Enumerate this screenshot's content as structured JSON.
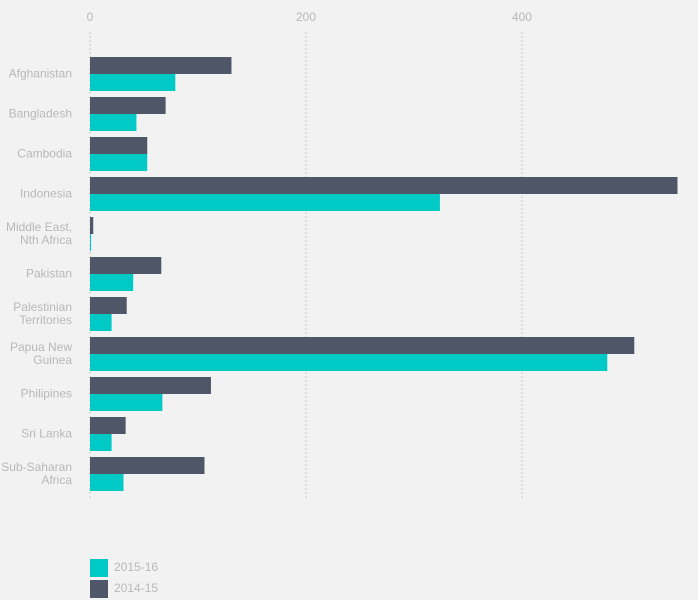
{
  "chart_data": {
    "type": "bar",
    "orientation": "horizontal",
    "categories": [
      "Afghanistan",
      "Bangladesh",
      "Cambodia",
      "Indonesia",
      "Middle East,\nNth Africa",
      "Pakistan",
      "Palestinian\nTerritories",
      "Papua New\nGuinea",
      "Philipines",
      "Sri Lanka",
      "Sub-Saharan\nAfrica"
    ],
    "series": [
      {
        "name": "2015-16",
        "color": "#00c9c6",
        "values": [
          79,
          43,
          53,
          324,
          1,
          40,
          20,
          479,
          67,
          20,
          31
        ]
      },
      {
        "name": "2014-15",
        "color": "#4e5668",
        "values": [
          131,
          70,
          53,
          544,
          3,
          66,
          34,
          504,
          112,
          33,
          106
        ]
      }
    ],
    "xlim": [
      0,
      563
    ],
    "xticks": [
      0,
      200,
      400
    ],
    "grid": true,
    "legend": "bottom-left"
  }
}
